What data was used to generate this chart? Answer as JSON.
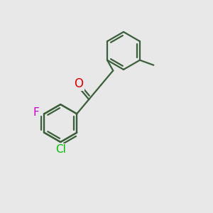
{
  "background_color": "#e8e8e8",
  "bond_color": "#3a5f3a",
  "bond_width": 1.6,
  "atom_colors": {
    "O": "#dd0000",
    "F": "#cc00cc",
    "Cl": "#00bb00"
  },
  "figsize": [
    3.0,
    3.0
  ],
  "dpi": 100
}
